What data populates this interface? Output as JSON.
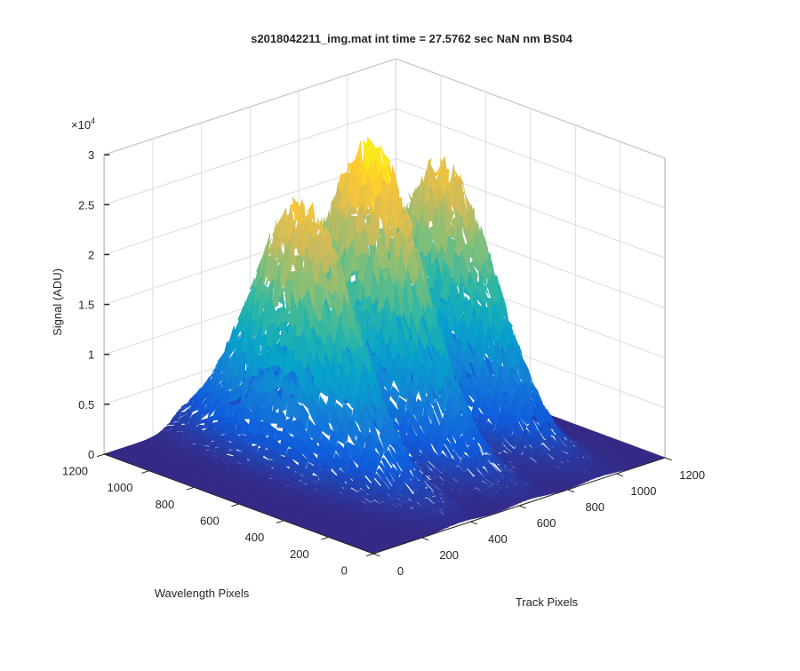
{
  "window": {
    "title": "s2018042211_img.mat int time = 27.5762 sec  NaN nm BS04"
  },
  "chart_data": {
    "type": "surface",
    "title": "s2018042211_img.mat int time = 27.5762 sec  NaN nm BS04",
    "xlabel": "Track Pixels",
    "ylabel": "Wavelength Pixels",
    "zlabel": "Signal (ADU)",
    "z_exponent_label": "×10",
    "z_exponent_power": "4",
    "xlim": [
      0,
      1200
    ],
    "ylim": [
      0,
      1200
    ],
    "zlim": [
      0,
      30000
    ],
    "xticks": [
      "0",
      "200",
      "400",
      "600",
      "800",
      "1000",
      "1200"
    ],
    "yticks": [
      "0",
      "200",
      "400",
      "600",
      "800",
      "1000",
      "1200"
    ],
    "zticks": [
      "0",
      "0.5",
      "1",
      "1.5",
      "2",
      "2.5",
      "3"
    ],
    "grid": true,
    "colormap": "parula",
    "colormap_stops": [
      "#352a87",
      "#0f5cdd",
      "#1481d6",
      "#06a4ca",
      "#2eb7a4",
      "#87bf77",
      "#d1bb59",
      "#fec832",
      "#f9fb0e"
    ],
    "peaks": [
      {
        "track_center": 360,
        "track_width": 95,
        "max_signal": 25000,
        "wavelength_center": 700,
        "wavelength_width": 330
      },
      {
        "track_center": 640,
        "track_width": 95,
        "max_signal": 28500,
        "wavelength_center": 700,
        "wavelength_width": 330
      },
      {
        "track_center": 930,
        "track_width": 95,
        "max_signal": 24500,
        "wavelength_center": 700,
        "wavelength_width": 330
      }
    ],
    "background_signal": 0
  }
}
